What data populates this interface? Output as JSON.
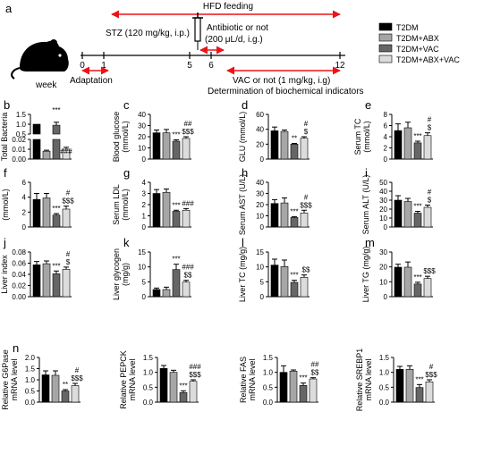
{
  "colors": {
    "series": [
      "#000000",
      "#a6a6a6",
      "#666666",
      "#dcdcdc"
    ],
    "arrow": "#e8141a"
  },
  "legend": {
    "items": [
      "T2DM",
      "T2DM+ABX",
      "T2DM+VAC",
      "T2DM+ABX+VAC"
    ]
  },
  "timeline": {
    "panel_letter": "a",
    "icon": "mouse-icon",
    "week_label": "week",
    "ticks": [
      "0",
      "1",
      "5",
      "6",
      "12"
    ],
    "tick_weeks": [
      0,
      1,
      5,
      6,
      12
    ],
    "hfd_label": "HFD feeding",
    "stz_label": "STZ (120 mg/kg, i.p.)",
    "antibiotic_line1": "Antibiotic or not",
    "antibiotic_line2": "(200 μL/d, i.g.)",
    "adaptation_label": "Adaptation",
    "vac_label": "VAC or not  (1 mg/kg, i.g)",
    "determination_label": "Determination of biochemical indicators"
  },
  "chart_data": [
    {
      "panel": "b",
      "type": "bar",
      "ylabel": "Total Bacteria",
      "broken_axis": true,
      "segments": [
        {
          "ylim": [
            0.5,
            1.5
          ],
          "ticks": [
            "0.5",
            "1.0",
            "1.5"
          ]
        },
        {
          "ylim": [
            0,
            0.02
          ],
          "ticks": [
            "0.00",
            "0.01",
            "0.02"
          ]
        }
      ],
      "values": [
        1.0,
        0.008,
        0.95,
        0.01
      ],
      "errors": [
        0.0,
        0.001,
        0.15,
        0.002
      ],
      "annotations": [
        "",
        "",
        "***",
        "###"
      ]
    },
    {
      "panel": "c",
      "type": "bar",
      "ylabel": "Blood glucose (mmol/L)",
      "ylim": [
        0,
        40
      ],
      "yticks": [
        "0",
        "10",
        "20",
        "30",
        "40"
      ],
      "values": [
        23.5,
        23.5,
        16,
        18.5
      ],
      "errors": [
        2.5,
        3.0,
        1.2,
        1.5
      ],
      "annotations": [
        "",
        "",
        "***",
        "##\n$$$"
      ]
    },
    {
      "panel": "d",
      "type": "bar",
      "ylabel": "GLU (mmol/L)",
      "ylim": [
        0,
        60
      ],
      "yticks": [
        "0",
        "20",
        "40",
        "60"
      ],
      "values": [
        38,
        37,
        20,
        28
      ],
      "errors": [
        5,
        2,
        1,
        2
      ],
      "annotations": [
        "",
        "",
        "**",
        "#\n$"
      ]
    },
    {
      "panel": "e",
      "type": "bar",
      "ylabel": "Serum TC (mmol/L)",
      "ylim": [
        0,
        8
      ],
      "yticks": [
        "0",
        "2",
        "4",
        "6",
        "8"
      ],
      "values": [
        5.1,
        5.6,
        2.9,
        4.2
      ],
      "errors": [
        1.2,
        1.0,
        0.3,
        0.5
      ],
      "annotations": [
        "",
        "",
        "***",
        "#\n$"
      ]
    },
    {
      "panel": "f",
      "type": "bar",
      "ylabel": "Serum TG (mmol/L)",
      "ylim": [
        0,
        6
      ],
      "yticks": [
        "0",
        "2",
        "4",
        "6"
      ],
      "values": [
        3.7,
        3.9,
        1.6,
        2.4
      ],
      "errors": [
        0.8,
        0.6,
        0.2,
        0.4
      ],
      "annotations": [
        "",
        "",
        "***",
        "#\n$$$"
      ]
    },
    {
      "panel": "g",
      "type": "bar",
      "ylabel": "Serum LDL (mmol/L)",
      "ylim": [
        0,
        4
      ],
      "yticks": [
        "0",
        "1",
        "2",
        "3",
        "4"
      ],
      "values": [
        3.0,
        3.1,
        1.4,
        1.5
      ],
      "errors": [
        0.35,
        0.3,
        0.1,
        0.15
      ],
      "annotations": [
        "",
        "",
        "***",
        "###"
      ]
    },
    {
      "panel": "h",
      "type": "bar",
      "ylabel": "Serum AST (U/L)",
      "ylim": [
        0,
        40
      ],
      "yticks": [
        "0",
        "10",
        "20",
        "30",
        "40"
      ],
      "values": [
        21,
        21.5,
        8.5,
        12.5
      ],
      "errors": [
        3.5,
        4.5,
        0.8,
        2.5
      ],
      "annotations": [
        "",
        "",
        "***",
        "#\n$$$"
      ]
    },
    {
      "panel": "i",
      "type": "bar",
      "ylabel": "Serum ALT (U/L)",
      "ylim": [
        0,
        50
      ],
      "yticks": [
        "0",
        "10",
        "20",
        "30",
        "40",
        "50"
      ],
      "values": [
        30,
        28.5,
        15.5,
        22
      ],
      "errors": [
        5,
        3.5,
        2,
        2.5
      ],
      "annotations": [
        "",
        "",
        "***",
        "#\n$"
      ]
    },
    {
      "panel": "j",
      "type": "bar",
      "ylabel": "Liver index",
      "ylim": [
        0,
        0.08
      ],
      "yticks": [
        "0.00",
        "0.02",
        "0.04",
        "0.06",
        "0.08"
      ],
      "values": [
        0.057,
        0.059,
        0.041,
        0.049
      ],
      "errors": [
        0.006,
        0.005,
        0.005,
        0.004
      ],
      "annotations": [
        "",
        "",
        "***",
        "#\n$"
      ]
    },
    {
      "panel": "k",
      "type": "bar",
      "ylabel": "Liver glycogen (mg/g)",
      "ylim": [
        0,
        15
      ],
      "yticks": [
        "0",
        "5",
        "10",
        "15"
      ],
      "values": [
        2.4,
        2.4,
        9.1,
        4.9
      ],
      "errors": [
        0.5,
        0.8,
        1.8,
        0.6
      ],
      "annotations": [
        "",
        "",
        "***",
        "###\n$$"
      ]
    },
    {
      "panel": "l",
      "type": "bar",
      "ylabel": "Liver TC (mg/g)",
      "ylim": [
        0,
        15
      ],
      "yticks": [
        "0",
        "5",
        "10",
        "15"
      ],
      "values": [
        10.6,
        10.1,
        4.8,
        6.5
      ],
      "errors": [
        2.0,
        2.2,
        0.7,
        0.8
      ],
      "annotations": [
        "",
        "",
        "***",
        "$$"
      ]
    },
    {
      "panel": "m",
      "type": "bar",
      "ylabel": "Liver TG (mg/g)",
      "ylim": [
        0,
        30
      ],
      "yticks": [
        "0",
        "10",
        "20",
        "30"
      ],
      "values": [
        19.8,
        19.8,
        8.5,
        12.2
      ],
      "errors": [
        2.0,
        3.5,
        1.2,
        1.5
      ],
      "annotations": [
        "",
        "",
        "***",
        "$$$"
      ]
    },
    {
      "panel": "n",
      "type": "bar",
      "ylabel": "Relative G6Pase mRNA level",
      "ylim": [
        0,
        2.0
      ],
      "yticks": [
        "0.0",
        "0.5",
        "1.0",
        "1.5",
        "2.0"
      ],
      "values": [
        1.22,
        1.2,
        0.5,
        0.74
      ],
      "errors": [
        0.18,
        0.2,
        0.06,
        0.1
      ],
      "annotations": [
        "",
        "",
        "**",
        "#\n$$$"
      ]
    },
    {
      "panel": "",
      "type": "bar",
      "ylabel": "Relative PEPCK mRNA level",
      "ylim": [
        0,
        1.5
      ],
      "yticks": [
        "0.0",
        "0.5",
        "1.0",
        "1.5"
      ],
      "values": [
        1.13,
        1.0,
        0.32,
        0.7
      ],
      "errors": [
        0.1,
        0.07,
        0.06,
        0.05
      ],
      "annotations": [
        "",
        "",
        "***",
        "###\n$$$"
      ]
    },
    {
      "panel": "",
      "type": "bar",
      "ylabel": "Relative FAS mRNA level",
      "ylim": [
        0,
        1.5
      ],
      "yticks": [
        "0.0",
        "0.5",
        "1.0",
        "1.5"
      ],
      "values": [
        1.0,
        1.04,
        0.56,
        0.78
      ],
      "errors": [
        0.22,
        0.04,
        0.08,
        0.04
      ],
      "annotations": [
        "",
        "",
        "***",
        "##\n$$"
      ]
    },
    {
      "panel": "",
      "type": "bar",
      "ylabel": "Relative SREBP1 mRNA level",
      "ylim": [
        0,
        1.5
      ],
      "yticks": [
        "0.0",
        "0.5",
        "1.0",
        "1.5"
      ],
      "values": [
        1.1,
        1.1,
        0.49,
        0.68
      ],
      "errors": [
        0.1,
        0.12,
        0.1,
        0.07
      ],
      "annotations": [
        "",
        "",
        "***",
        "#\n$$$"
      ]
    }
  ]
}
